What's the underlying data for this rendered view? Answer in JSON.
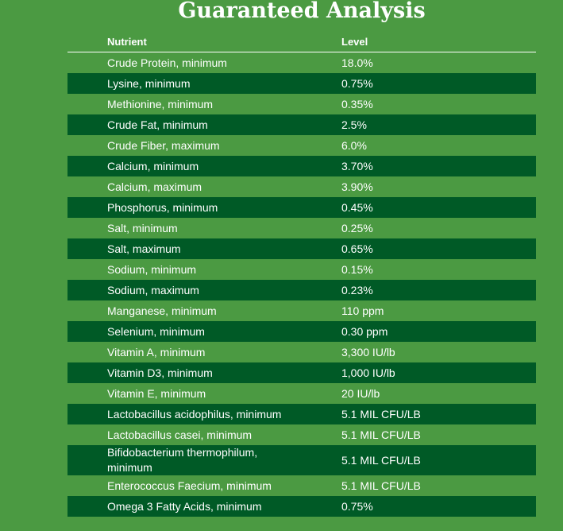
{
  "header": {
    "title": "Guaranteed Analysis"
  },
  "table": {
    "columns": [
      "Nutrient",
      "Level"
    ],
    "rows": [
      [
        "Crude Protein, minimum",
        "18.0%"
      ],
      [
        "Lysine, minimum",
        "0.75%"
      ],
      [
        "Methionine, minimum",
        "0.35%"
      ],
      [
        "Crude Fat, minimum",
        "2.5%"
      ],
      [
        "Crude Fiber, maximum",
        "6.0%"
      ],
      [
        "Calcium, minimum",
        "3.70%"
      ],
      [
        "Calcium, maximum",
        "3.90%"
      ],
      [
        "Phosphorus, minimum",
        "0.45%"
      ],
      [
        "Salt, minimum",
        "0.25%"
      ],
      [
        "Salt, maximum",
        "0.65%"
      ],
      [
        "Sodium, minimum",
        "0.15%"
      ],
      [
        "Sodium, maximum",
        "0.23%"
      ],
      [
        "Manganese, minimum",
        "110 ppm"
      ],
      [
        "Selenium, minimum",
        "0.30 ppm"
      ],
      [
        "Vitamin A, minimum",
        "3,300 IU/lb"
      ],
      [
        "Vitamin D3, minimum",
        "1,000 IU/lb"
      ],
      [
        "Vitamin E, minimum",
        "20 IU/lb"
      ],
      [
        "Lactobacillus acidophilus, minimum",
        "5.1 MIL CFU/LB"
      ],
      [
        "Lactobacillus casei, minimum",
        "5.1 MIL CFU/LB"
      ],
      [
        "Bifidobacterium thermophilum, minimum",
        "5.1 MIL CFU/LB"
      ],
      [
        "Enterococcus Faecium, minimum",
        "5.1 MIL CFU/LB"
      ],
      [
        "Omega 3 Fatty Acids, minimum",
        "0.75%"
      ]
    ]
  }
}
